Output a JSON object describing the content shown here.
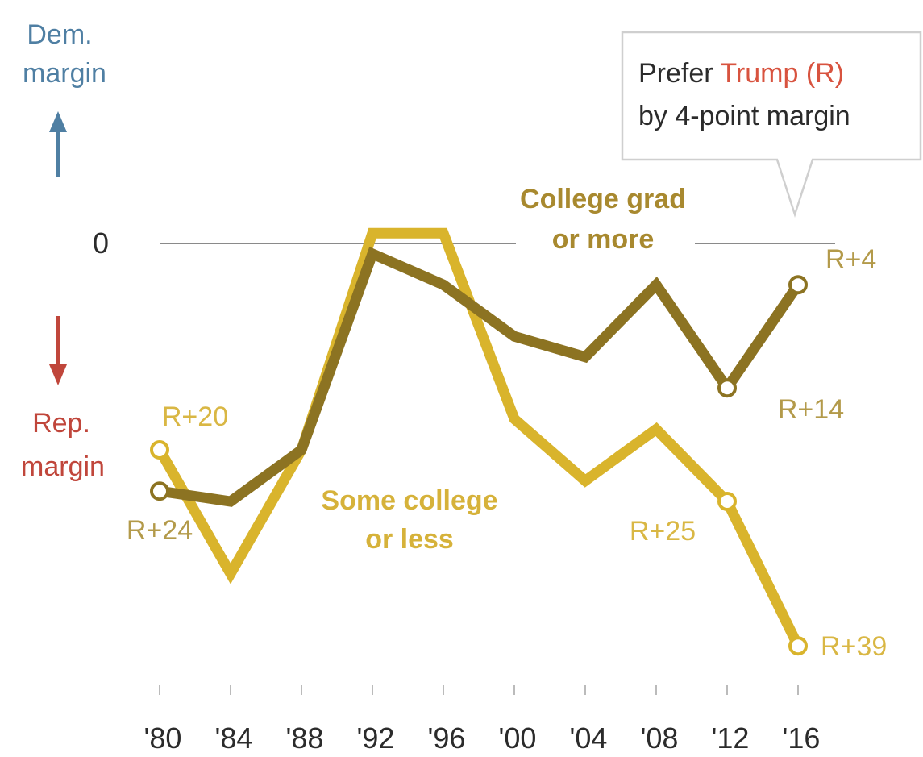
{
  "chart_data": {
    "type": "line",
    "x": [
      "'80",
      "'84",
      "'88",
      "'92",
      "'96",
      "'00",
      "'04",
      "'08",
      "'12",
      "'16"
    ],
    "ylim": [
      -42,
      2
    ],
    "y_reference_label": "0",
    "series": [
      {
        "name": "College grad or more",
        "color": "#8c7322",
        "values": [
          -24,
          -25,
          -20,
          -1,
          -4,
          -9,
          -11,
          -4,
          -14,
          -4
        ]
      },
      {
        "name": "Some college or less",
        "color": "#d9b42c",
        "values": [
          -20,
          -32,
          -20,
          1,
          1,
          -17,
          -23,
          -18,
          -25,
          -39
        ]
      }
    ],
    "series_labels": [
      {
        "series": 0,
        "lines": [
          "College grad",
          "or more"
        ],
        "color": "#a8892f"
      },
      {
        "series": 1,
        "lines": [
          "Some college",
          "or less"
        ],
        "color": "#d6b23a"
      }
    ],
    "data_labels": [
      {
        "series": 0,
        "index": 0,
        "text": "R+24"
      },
      {
        "series": 0,
        "index": 8,
        "text": "R+14"
      },
      {
        "series": 0,
        "index": 9,
        "text": "R+4"
      },
      {
        "series": 1,
        "index": 0,
        "text": "R+20"
      },
      {
        "series": 1,
        "index": 8,
        "text": "R+25"
      },
      {
        "series": 1,
        "index": 9,
        "text": "R+39"
      }
    ],
    "axis_legend": {
      "dem": {
        "lines": [
          "Dem.",
          "margin"
        ],
        "color": "#4f7fa3"
      },
      "rep": {
        "lines": [
          "Rep.",
          "margin"
        ],
        "color": "#c0463b"
      }
    },
    "callout": {
      "line1_prefix": "Prefer ",
      "line1_highlight": "Trump (R)",
      "line2": "by 4-point margin",
      "highlight_color": "#d8533f"
    },
    "grid": false
  }
}
